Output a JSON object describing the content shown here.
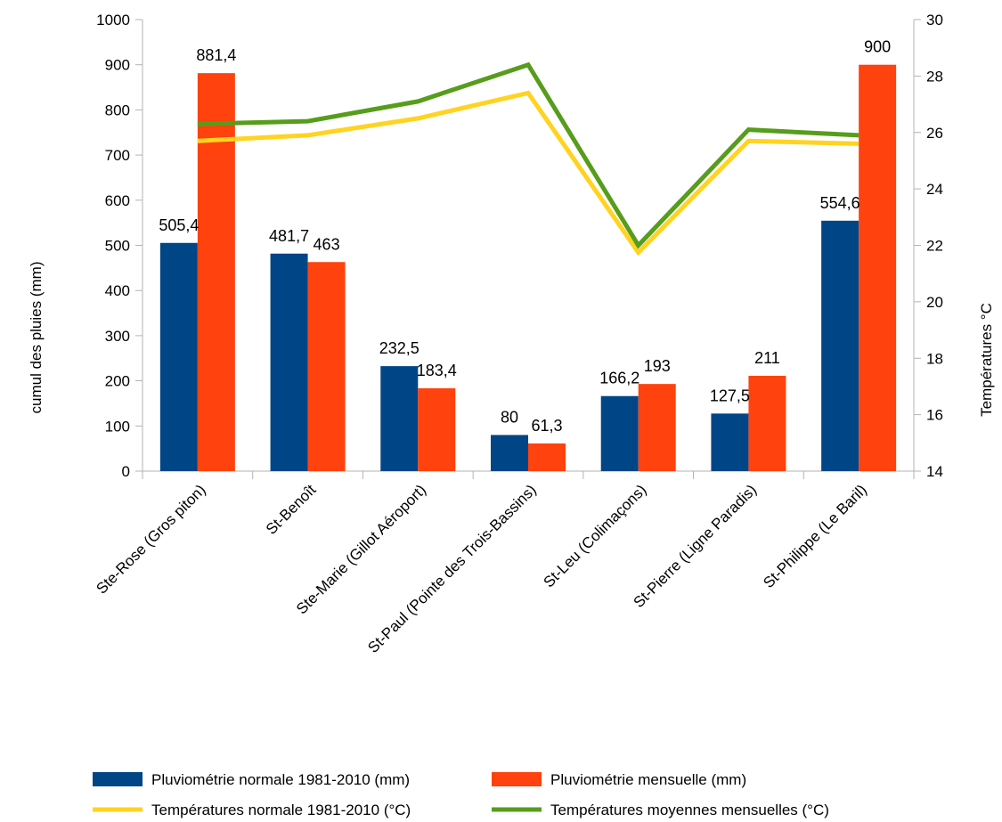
{
  "chart_data": {
    "type": "bar",
    "categories": [
      "Ste-Rose (Gros piton)",
      "St-Benoît",
      "Ste-Marie (Gillot Aéroport)",
      "St-Paul (Pointe des Trois-Bassins)",
      "St-Leu (Colimaçons)",
      "St-Pierre (Ligne Paradis)",
      "St-Philippe (Le Baril)"
    ],
    "bar_series": [
      {
        "name": "Pluviométrie normale 1981-2010 (mm)",
        "color": "#004586",
        "values": [
          505.4,
          481.7,
          232.5,
          80,
          166.2,
          127.5,
          554.6
        ],
        "labels": [
          "505,4",
          "481,7",
          "232,5",
          "80",
          "166,2",
          "127,5",
          "554,6"
        ]
      },
      {
        "name": "Pluviométrie mensuelle (mm)",
        "color": "#ff420e",
        "values": [
          881.4,
          463,
          183.4,
          61.3,
          193,
          211,
          900
        ],
        "labels": [
          "881,4",
          "463",
          "183,4",
          "61,3",
          "193",
          "211",
          "900"
        ]
      }
    ],
    "line_series": [
      {
        "name": "Températures normale 1981-2010 (°C)",
        "color": "#ffd320",
        "values": [
          25.7,
          25.9,
          26.5,
          27.4,
          21.75,
          25.7,
          25.6
        ]
      },
      {
        "name": "Températures moyennes mensuelles (°C)",
        "color": "#579d1c",
        "values": [
          26.3,
          26.4,
          27.1,
          28.4,
          22.0,
          26.1,
          25.9
        ]
      }
    ],
    "y_left": {
      "label": "cumul des pluies (mm)",
      "range": [
        0,
        1000
      ],
      "ticks": [
        "0",
        "100",
        "200",
        "300",
        "400",
        "500",
        "600",
        "700",
        "800",
        "900",
        "1000"
      ]
    },
    "y_right": {
      "label": "Températures °C",
      "range": [
        14,
        30
      ],
      "ticks": [
        "14",
        "16",
        "18",
        "20",
        "22",
        "24",
        "26",
        "28",
        "30"
      ]
    },
    "grid": false,
    "legend_position": "bottom"
  }
}
